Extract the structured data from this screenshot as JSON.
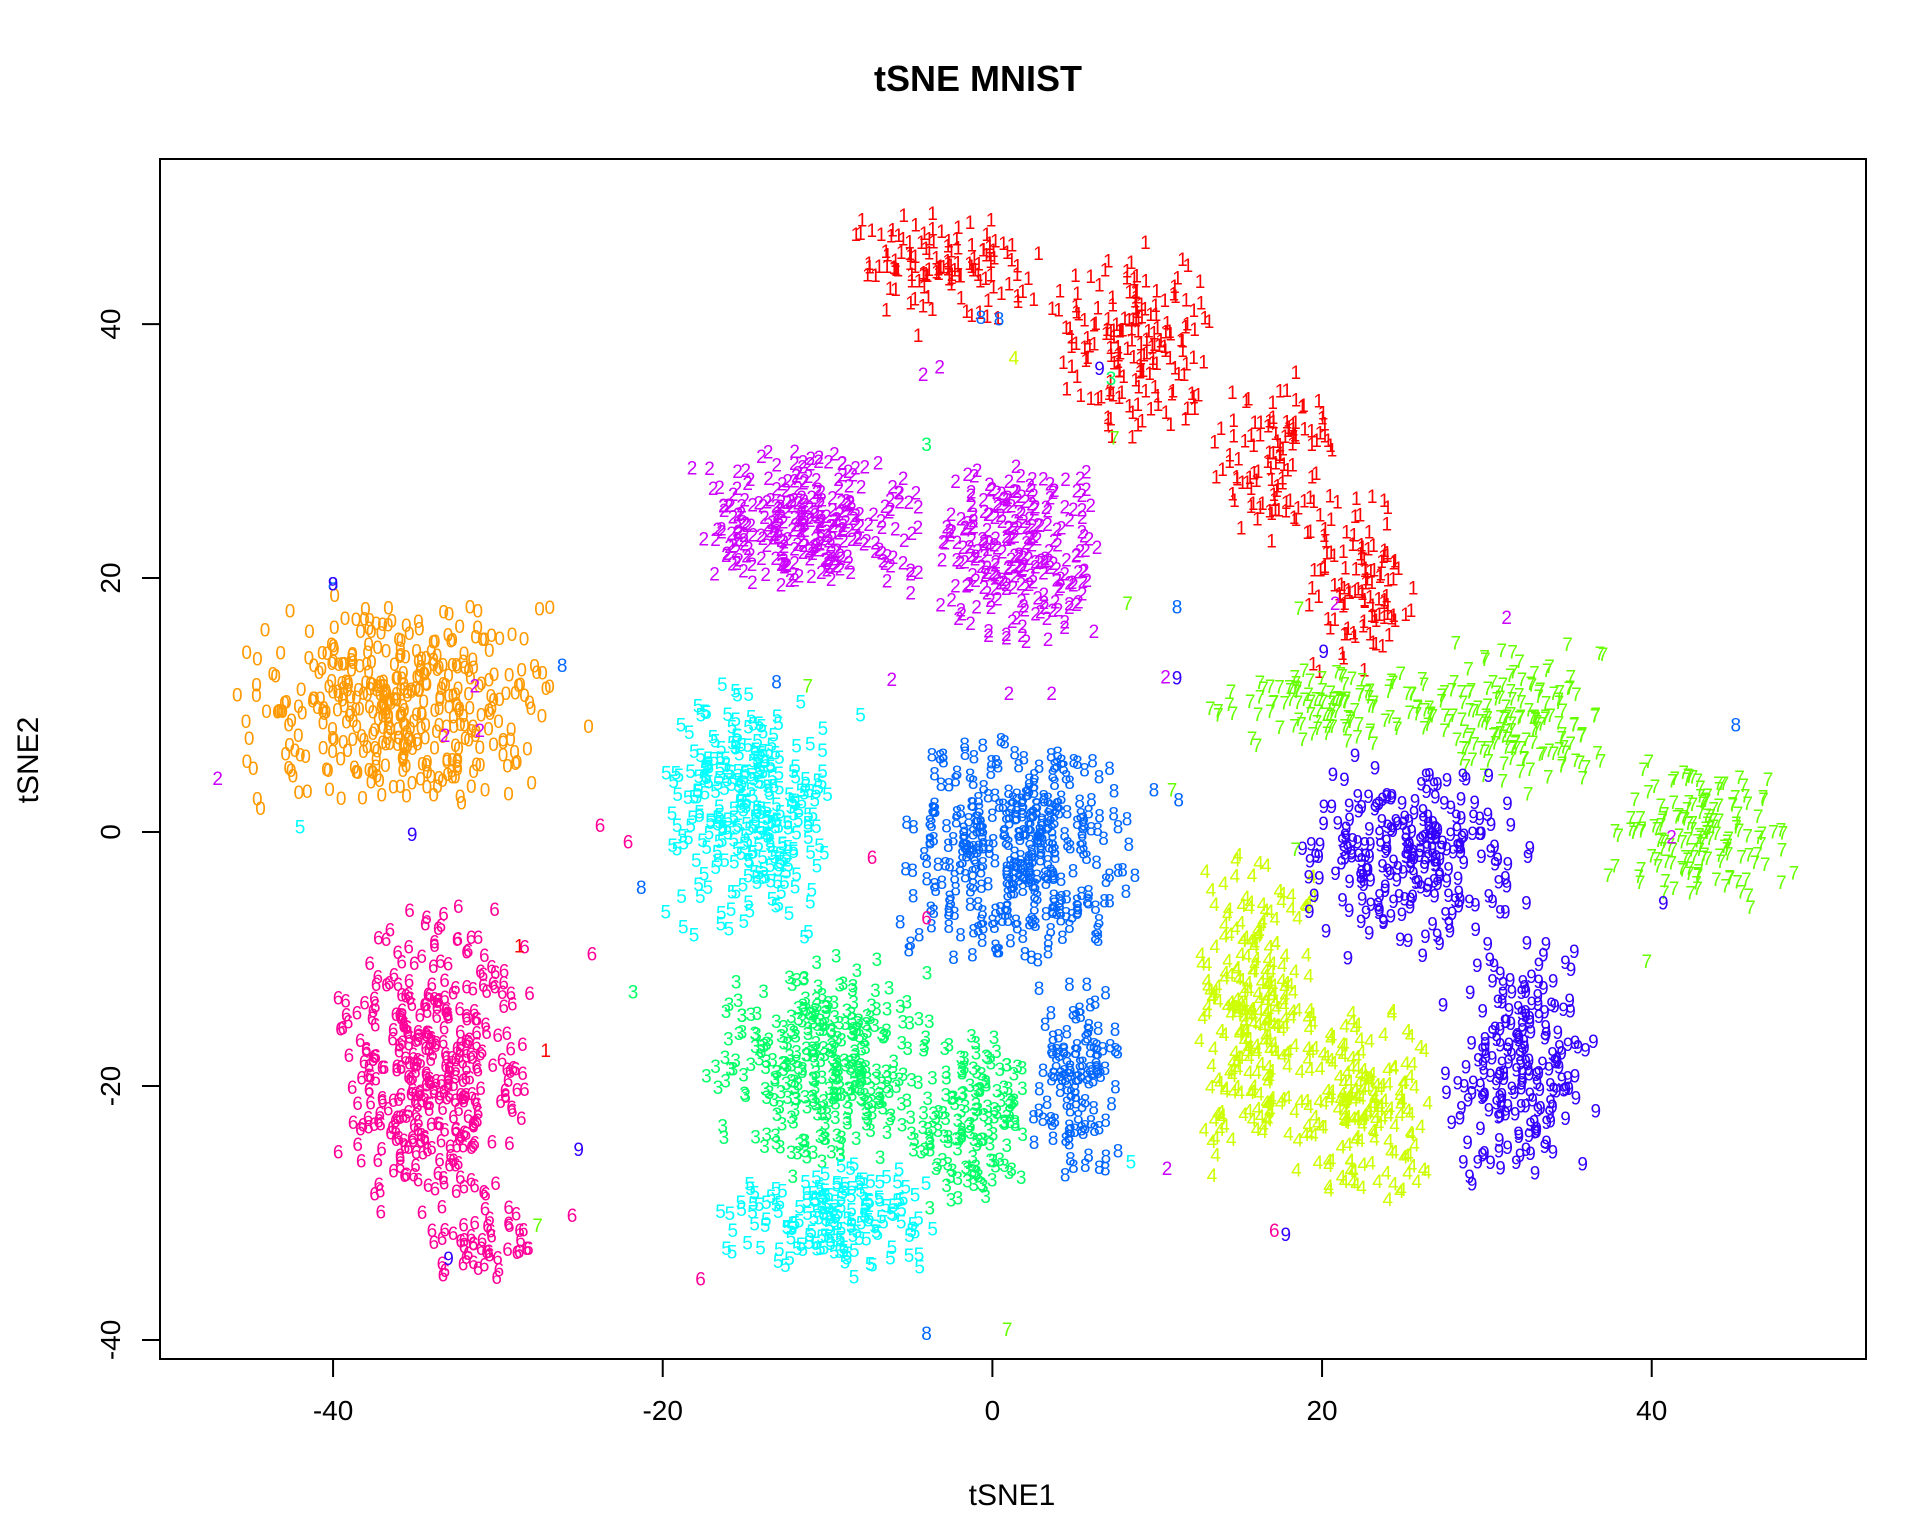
{
  "chart_data": {
    "type": "scatter",
    "title": "tSNE MNIST",
    "xlabel": "tSNE1",
    "ylabel": "tSNE2",
    "xlim": [
      -50.5,
      53
    ],
    "ylim": [
      -41.5,
      53
    ],
    "x_ticks": [
      -40,
      -20,
      0,
      20,
      40
    ],
    "y_ticks": [
      -40,
      -20,
      0,
      20,
      40
    ],
    "x_tick_labels": [
      "-40",
      "-20",
      "0",
      "20",
      "40"
    ],
    "y_tick_labels": [
      "-40",
      "-20",
      "0",
      "20",
      "40"
    ],
    "grid": false,
    "legend": "none",
    "marker": "digit glyph",
    "series": [
      {
        "label": "0",
        "color": "#FF9900",
        "count": 420,
        "regions": [
          {
            "x": [
              -46,
              -26
            ],
            "y": [
              1,
              18
            ]
          }
        ]
      },
      {
        "label": "1",
        "color": "#FF0000",
        "count": 520,
        "regions": [
          {
            "x": [
              -9,
              4
            ],
            "y": [
              39,
              49
            ]
          },
          {
            "x": [
              3,
              14
            ],
            "y": [
              30,
              46
            ]
          },
          {
            "x": [
              13,
              21
            ],
            "y": [
              22,
              36
            ]
          },
          {
            "x": [
              19,
              26
            ],
            "y": [
              11,
              27
            ]
          }
        ]
      },
      {
        "label": "2",
        "color": "#CC00FF",
        "count": 540,
        "regions": [
          {
            "x": [
              -19,
              -3
            ],
            "y": [
              18,
              30
            ]
          },
          {
            "x": [
              -4,
              7
            ],
            "y": [
              14,
              29
            ]
          }
        ]
      },
      {
        "label": "3",
        "color": "#00FF66",
        "count": 470,
        "regions": [
          {
            "x": [
              -18,
              -3
            ],
            "y": [
              -28,
              -10
            ]
          },
          {
            "x": [
              -5,
              3
            ],
            "y": [
              -31,
              -16
            ]
          }
        ]
      },
      {
        "label": "4",
        "color": "#CCFF00",
        "count": 450,
        "regions": [
          {
            "x": [
              12,
              20
            ],
            "y": [
              -28,
              -1
            ]
          },
          {
            "x": [
              18,
              27
            ],
            "y": [
              -30,
              -14
            ]
          }
        ]
      },
      {
        "label": "5",
        "color": "#00FFFF",
        "count": 470,
        "regions": [
          {
            "x": [
              -20,
              -9
            ],
            "y": [
              -10,
              12
            ]
          },
          {
            "x": [
              -17,
              -3
            ],
            "y": [
              -36,
              -26
            ]
          }
        ]
      },
      {
        "label": "6",
        "color": "#FF0099",
        "count": 430,
        "regions": [
          {
            "x": [
              -40,
              -28
            ],
            "y": [
              -32,
              -6
            ]
          },
          {
            "x": [
              -34,
              -28
            ],
            "y": [
              -36,
              -30
            ]
          }
        ]
      },
      {
        "label": "7",
        "color": "#66FF00",
        "count": 430,
        "regions": [
          {
            "x": [
              12,
              30
            ],
            "y": [
              6,
              13
            ]
          },
          {
            "x": [
              27,
              38
            ],
            "y": [
              2,
              15
            ]
          },
          {
            "x": [
              37,
              49
            ],
            "y": [
              -7,
              6
            ]
          }
        ]
      },
      {
        "label": "8",
        "color": "#0066FF",
        "count": 470,
        "regions": [
          {
            "x": [
              -6,
              9
            ],
            "y": [
              -12,
              8
            ]
          },
          {
            "x": [
              2,
              8
            ],
            "y": [
              -28,
              -12
            ]
          }
        ]
      },
      {
        "label": "9",
        "color": "#3300FF",
        "count": 440,
        "regions": [
          {
            "x": [
              18,
              33
            ],
            "y": [
              -11,
              6
            ]
          },
          {
            "x": [
              27,
              37
            ],
            "y": [
              -29,
              -8
            ]
          }
        ]
      }
    ],
    "outliers": [
      {
        "label": "2",
        "x": -3.2,
        "y": 36.1
      },
      {
        "label": "2",
        "x": -4.2,
        "y": 35.5
      },
      {
        "label": "1",
        "x": -4.5,
        "y": 38.6
      },
      {
        "label": "8",
        "x": -0.7,
        "y": 40.0
      },
      {
        "label": "8",
        "x": 0.4,
        "y": 39.9
      },
      {
        "label": "4",
        "x": 1.3,
        "y": 36.8
      },
      {
        "label": "9",
        "x": 6.5,
        "y": 36.0
      },
      {
        "label": "3",
        "x": 7.2,
        "y": 35.2
      },
      {
        "label": "7",
        "x": 7.4,
        "y": 30.5
      },
      {
        "label": "3",
        "x": -4.0,
        "y": 30.0
      },
      {
        "label": "7",
        "x": 8.2,
        "y": 17.5
      },
      {
        "label": "8",
        "x": 11.2,
        "y": 17.2
      },
      {
        "label": "7",
        "x": 18.6,
        "y": 17.1
      },
      {
        "label": "2",
        "x": 20.8,
        "y": 17.5
      },
      {
        "label": "2",
        "x": 10.5,
        "y": 11.7
      },
      {
        "label": "9",
        "x": 11.2,
        "y": 11.6
      },
      {
        "label": "9",
        "x": 20.1,
        "y": 13.7
      },
      {
        "label": "2",
        "x": 31.2,
        "y": 16.4
      },
      {
        "label": "8",
        "x": 45.1,
        "y": 7.9
      },
      {
        "label": "8",
        "x": -40.0,
        "y": 19.0
      },
      {
        "label": "8",
        "x": -26.1,
        "y": 12.6
      },
      {
        "label": "0",
        "x": -24.5,
        "y": 7.8
      },
      {
        "label": "2",
        "x": -47.0,
        "y": 3.7
      },
      {
        "label": "5",
        "x": -42.0,
        "y": -0.1
      },
      {
        "label": "6",
        "x": -23.8,
        "y": 0.0
      },
      {
        "label": "6",
        "x": -22.1,
        "y": -1.3
      },
      {
        "label": "8",
        "x": -21.3,
        "y": -4.9
      },
      {
        "label": "7",
        "x": -11.2,
        "y": 11.0
      },
      {
        "label": "8",
        "x": -13.1,
        "y": 11.3
      },
      {
        "label": "5",
        "x": -8.0,
        "y": 8.7
      },
      {
        "label": "2",
        "x": -6.1,
        "y": 11.5
      },
      {
        "label": "2",
        "x": 1.0,
        "y": 10.4
      },
      {
        "label": "2",
        "x": 3.6,
        "y": 10.4
      },
      {
        "label": "7",
        "x": 10.9,
        "y": 2.8
      },
      {
        "label": "8",
        "x": 9.8,
        "y": 2.8
      },
      {
        "label": "8",
        "x": 11.3,
        "y": 2.0
      },
      {
        "label": "6",
        "x": -7.3,
        "y": -2.5
      },
      {
        "label": "6",
        "x": -4.0,
        "y": -7.3
      },
      {
        "label": "8",
        "x": 8.1,
        "y": -5.2
      },
      {
        "label": "5",
        "x": 8.4,
        "y": -26.5
      },
      {
        "label": "2",
        "x": 10.6,
        "y": -27.0
      },
      {
        "label": "6",
        "x": -17.7,
        "y": -35.7
      },
      {
        "label": "9",
        "x": -33.0,
        "y": -34.1
      },
      {
        "label": "9",
        "x": -25.1,
        "y": -25.5
      },
      {
        "label": "6",
        "x": -25.5,
        "y": -30.7
      },
      {
        "label": "3",
        "x": -21.8,
        "y": -13.1
      },
      {
        "label": "6",
        "x": -24.3,
        "y": -10.1
      },
      {
        "label": "1",
        "x": -27.1,
        "y": -17.7
      },
      {
        "label": "1",
        "x": -28.7,
        "y": -9.5
      },
      {
        "label": "7",
        "x": -27.6,
        "y": -31.5
      },
      {
        "label": "2",
        "x": -33.2,
        "y": 7.1
      },
      {
        "label": "2",
        "x": -31.1,
        "y": 7.5
      },
      {
        "label": "2",
        "x": -31.4,
        "y": 11.0
      },
      {
        "label": "9",
        "x": -35.2,
        "y": -0.7
      },
      {
        "label": "0",
        "x": -39.9,
        "y": 18.1
      },
      {
        "label": "9",
        "x": -40.0,
        "y": 19.0
      },
      {
        "label": "7",
        "x": 0.9,
        "y": -39.7
      },
      {
        "label": "8",
        "x": -4.0,
        "y": -40.0
      },
      {
        "label": "7",
        "x": 18.4,
        "y": -1.9
      },
      {
        "label": "6",
        "x": 17.1,
        "y": -31.9
      },
      {
        "label": "9",
        "x": 17.8,
        "y": -32.2
      },
      {
        "label": "7",
        "x": 39.7,
        "y": -10.7
      },
      {
        "label": "9",
        "x": 40.7,
        "y": -6.1
      },
      {
        "label": "2",
        "x": 41.2,
        "y": -0.9
      }
    ]
  }
}
